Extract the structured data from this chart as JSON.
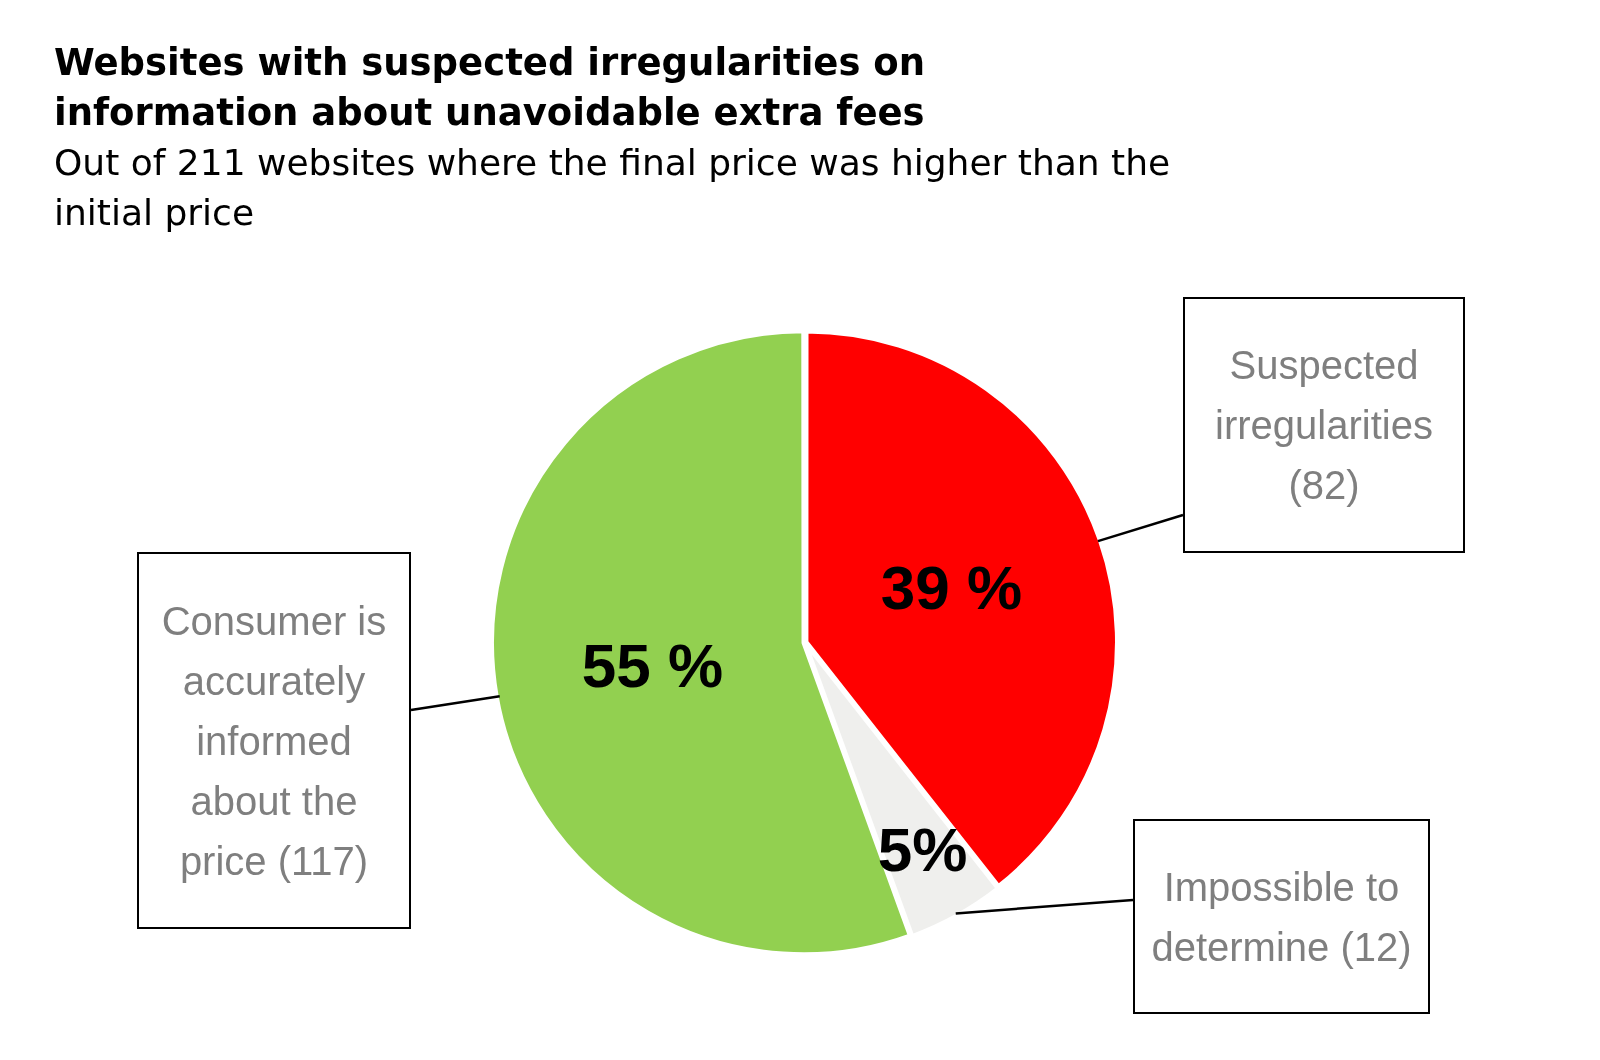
{
  "chart_data": {
    "type": "pie",
    "title": "Websites with suspected irregularities on information about unavoidable extra fees",
    "subtitle": "Out of 211 websites where the final price was higher than the initial price",
    "categories": [
      "Suspected irregularities (82)",
      "Impossible to determine (12)",
      "Consumer is accurately informed about the price (117)"
    ],
    "values": [
      39,
      5,
      55
    ],
    "colors": [
      "#ff0000",
      "#efefed",
      "#92d050"
    ],
    "value_labels": [
      "39 %",
      "5%",
      "55 %"
    ],
    "legend": false
  }
}
